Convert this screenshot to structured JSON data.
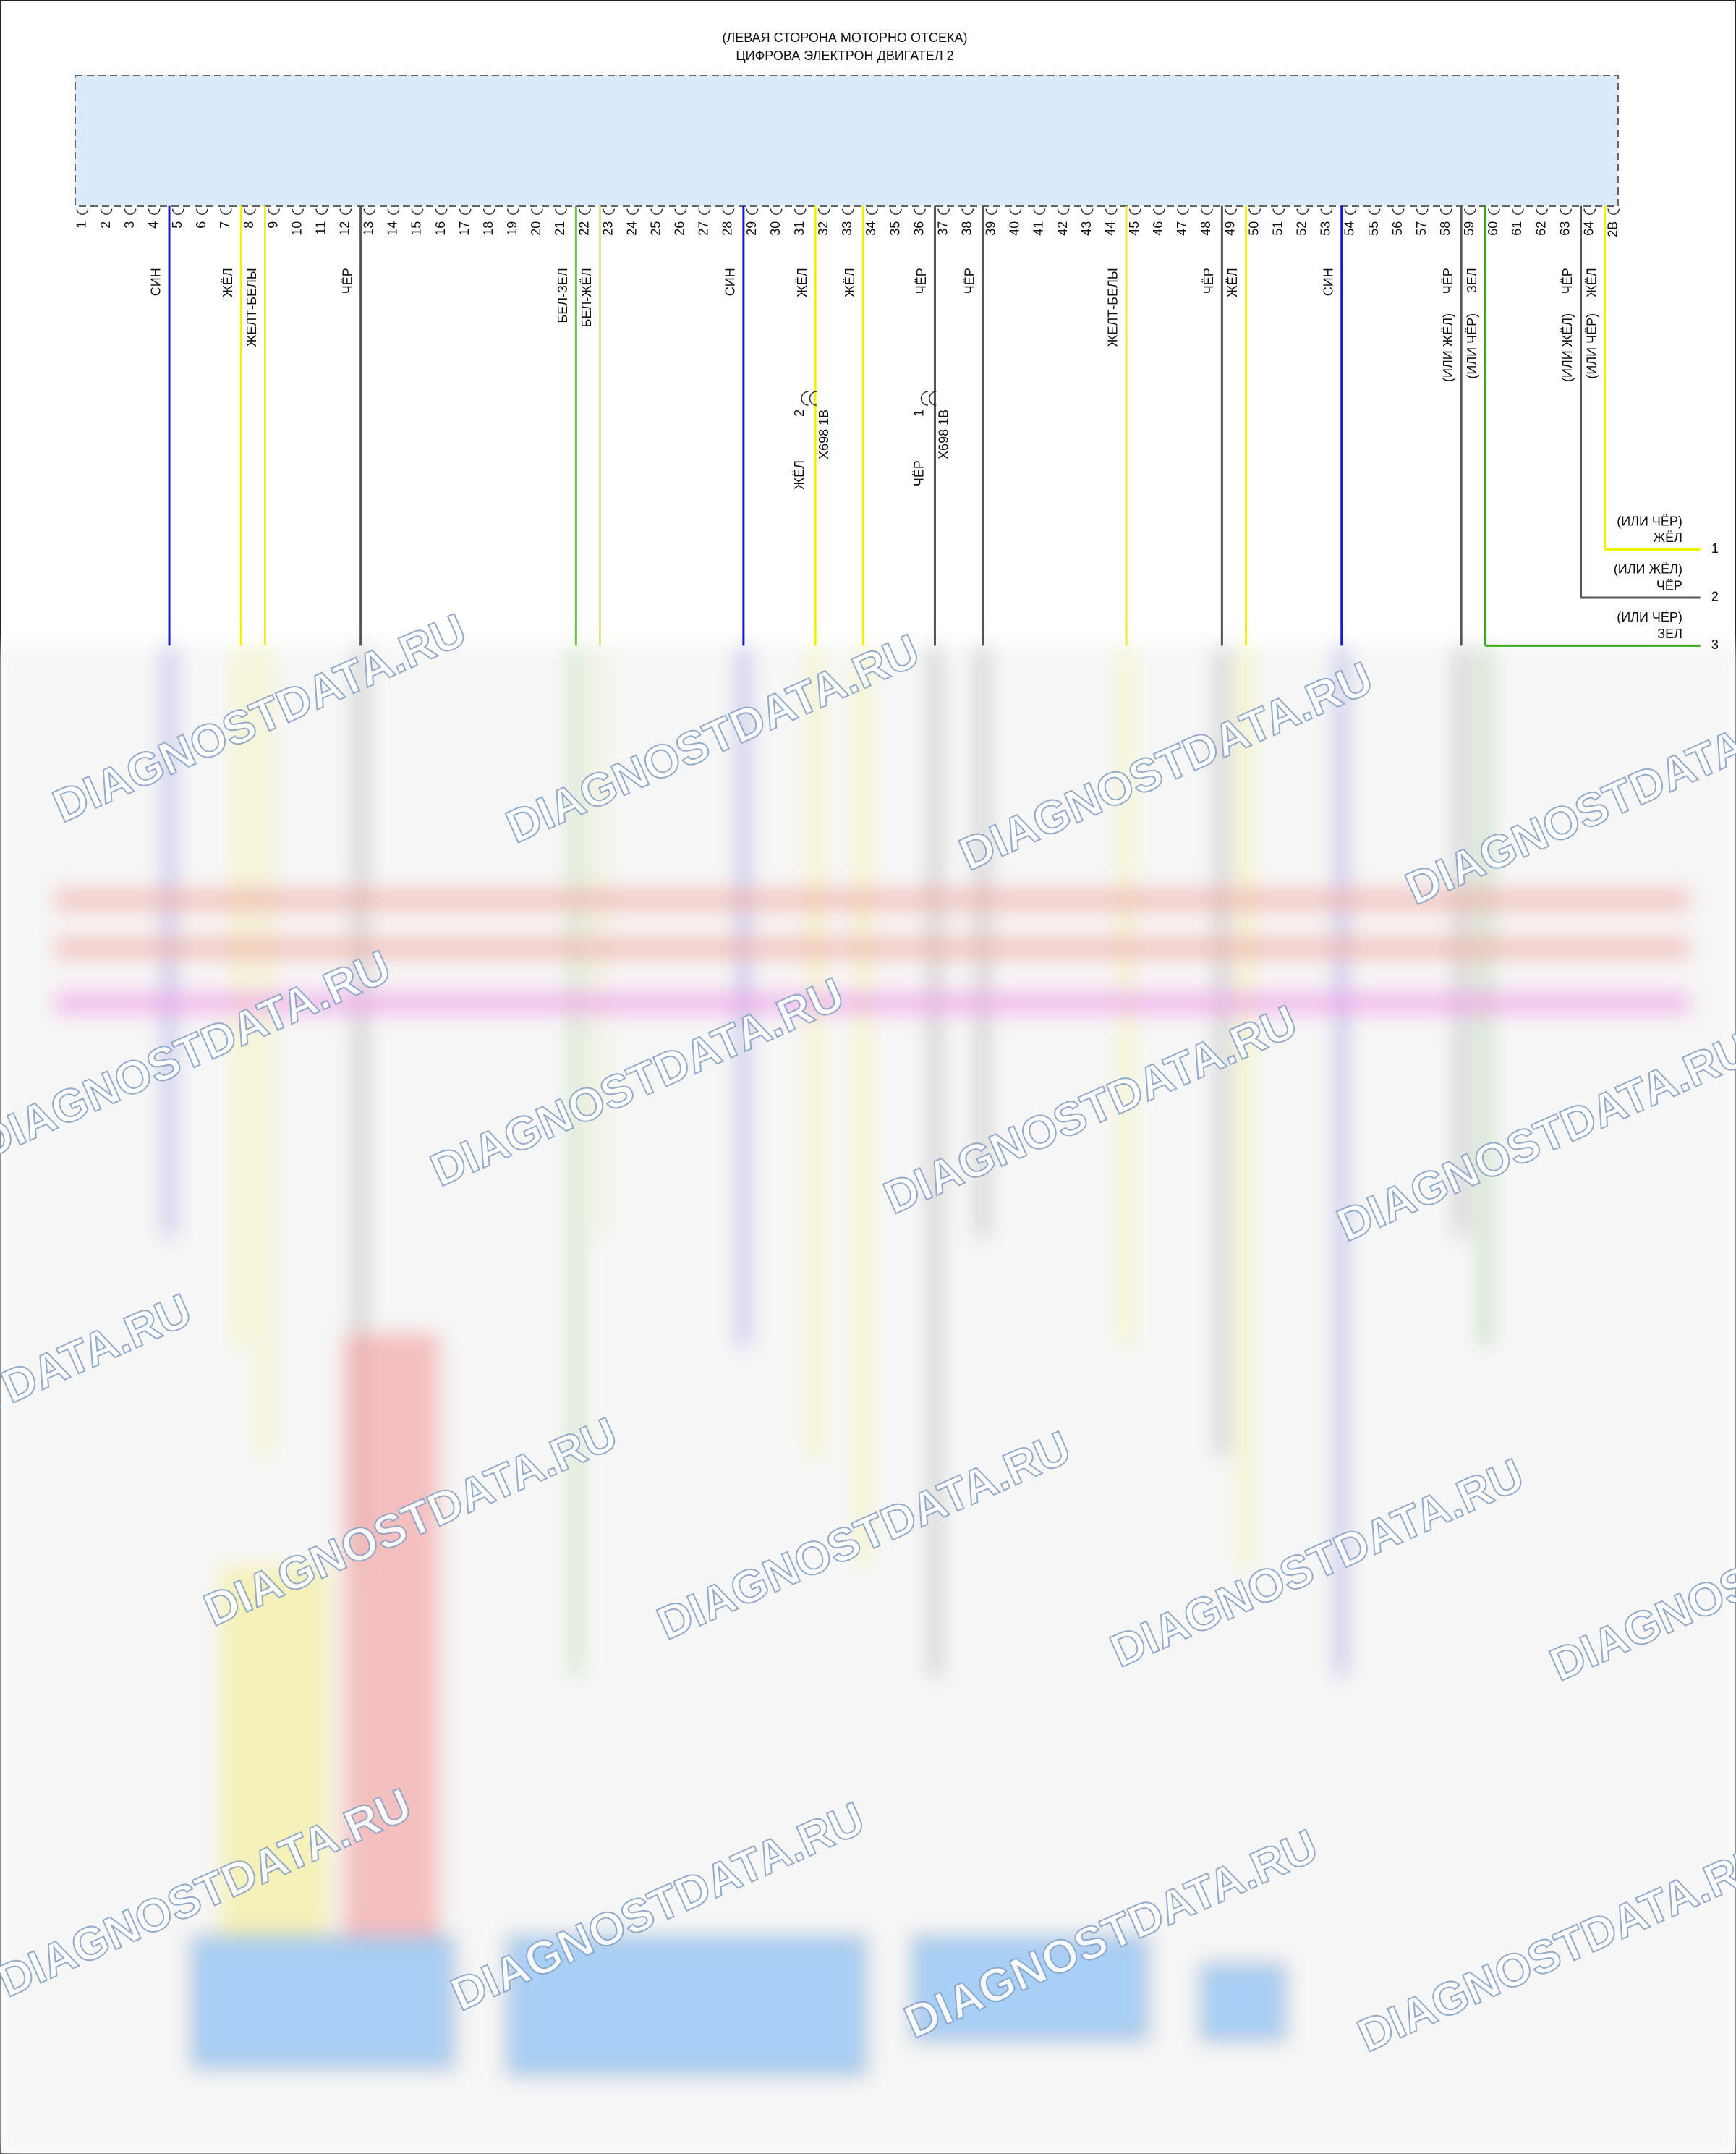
{
  "header": {
    "title_line1": "(ЛЕВАЯ СТОРОНА МОТОРНО ОТСЕКА)",
    "title_line2": "ЦИФРОВА ЭЛЕКТРОН ДВИГАТЕЛ 2"
  },
  "pins": [
    "1",
    "2",
    "3",
    "4",
    "5",
    "6",
    "7",
    "8",
    "9",
    "10",
    "11",
    "12",
    "13",
    "14",
    "15",
    "16",
    "17",
    "18",
    "19",
    "20",
    "21",
    "22",
    "23",
    "24",
    "25",
    "26",
    "27",
    "28",
    "29",
    "30",
    "31",
    "32",
    "33",
    "34",
    "35",
    "36",
    "37",
    "38",
    "39",
    "40",
    "41",
    "42",
    "43",
    "44",
    "45",
    "46",
    "47",
    "48",
    "49",
    "50",
    "51",
    "52",
    "53",
    "54",
    "55",
    "56",
    "57",
    "58",
    "59",
    "60",
    "61",
    "62",
    "63",
    "64",
    "2В"
  ],
  "wires": [
    {
      "label": "СИН",
      "color": "#1a1acc"
    },
    {
      "label": "ЖЁЛ",
      "color": "#f2f200"
    },
    {
      "label": "ЖЕЛТ-БЕЛЫ",
      "color": "#eeee30"
    },
    {
      "label": "ЧЁР",
      "color": "#555555"
    },
    {
      "label": "БЕЛ-ЗЕЛ",
      "color": "#6cbf3a"
    },
    {
      "label": "БЕЛ-ЖЁЛ",
      "color": "#e4e48c"
    },
    {
      "label": "СИН",
      "color": "#1a1acc"
    },
    {
      "label": "ЖЁЛ",
      "color": "#f2f200"
    },
    {
      "label": "ЖЁЛ",
      "color": "#f2f200"
    },
    {
      "label": "ЧЁР",
      "color": "#555555"
    },
    {
      "label": "ЧЁР",
      "color": "#555555"
    },
    {
      "label": "ЖЕЛТ-БЕЛЫ",
      "color": "#eeee30"
    },
    {
      "label": "ЧЁР",
      "color": "#555555"
    },
    {
      "label": "ЖЁЛ",
      "color": "#f2f200"
    },
    {
      "label": "СИН",
      "color": "#1a1acc"
    },
    {
      "label": "ЧЁР",
      "alt": "(ИЛИ ЖЁЛ)",
      "color": "#555555"
    },
    {
      "label": "ЗЕЛ",
      "alt": "(ИЛИ ЧЁР)",
      "color": "#3aa81a"
    },
    {
      "label": "ЧЁР",
      "alt": "(ИЛИ ЖЁЛ)",
      "color": "#555555"
    },
    {
      "label": "ЖЁЛ",
      "alt": "(ИЛИ ЧЁР)",
      "color": "#f2f200"
    }
  ],
  "inline_connectors": [
    {
      "name": "X698 1B",
      "pin": "2",
      "color_label": "ЖЁЛ"
    },
    {
      "name": "X698 1B",
      "pin": "1",
      "color_label": "ЧЁР"
    }
  ],
  "outputs": [
    {
      "number": "1",
      "alt": "(ИЛИ ЧЁР)",
      "label": "ЖЁЛ"
    },
    {
      "number": "2",
      "alt": "(ИЛИ ЖЁЛ)",
      "label": "ЧЁР"
    },
    {
      "number": "3",
      "alt": "(ИЛИ ЧЁР)",
      "label": "ЗЕЛ"
    }
  ],
  "watermark": "DIAGNOSTDATA.RU"
}
